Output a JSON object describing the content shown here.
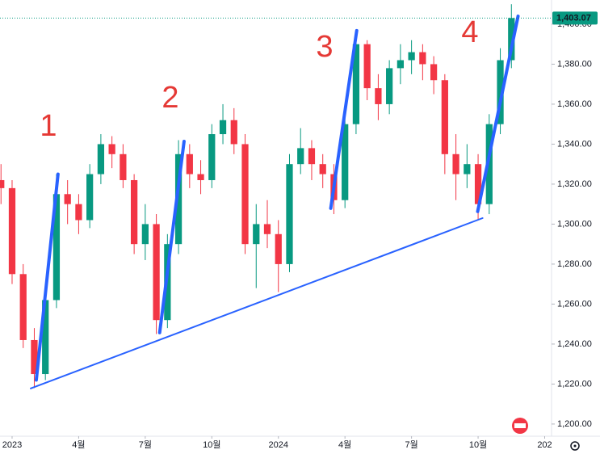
{
  "chart_data": {
    "type": "candlestick",
    "x": [
      -0.5,
      0,
      0.5,
      1,
      1.5,
      2,
      2.5,
      3,
      3.5,
      4,
      4.5,
      5,
      5.5,
      6,
      6.5,
      7,
      7.5,
      8,
      8.5,
      9,
      9.5,
      10,
      10.5,
      11,
      11.5,
      12,
      12.5,
      13,
      13.5,
      14,
      14.5,
      15,
      15.5,
      16,
      16.5,
      17,
      17.5,
      18,
      18.5,
      19,
      19.5,
      20,
      20.5,
      21,
      21.5,
      22,
      22.5
    ],
    "open": [
      1322,
      1318,
      1275,
      1242,
      1225,
      1262,
      1315,
      1310,
      1302,
      1325,
      1340,
      1335,
      1322,
      1290,
      1300,
      1252,
      1290,
      1335,
      1325,
      1322,
      1345,
      1352,
      1340,
      1290,
      1300,
      1295,
      1280,
      1330,
      1338,
      1330,
      1325,
      1312,
      1350,
      1390,
      1368,
      1360,
      1378,
      1382,
      1386,
      1380,
      1372,
      1335,
      1325,
      1330,
      1310,
      1350,
      1382
    ],
    "high": [
      1330,
      1322,
      1280,
      1248,
      1265,
      1325,
      1322,
      1315,
      1330,
      1345,
      1344,
      1340,
      1325,
      1310,
      1305,
      1295,
      1342,
      1340,
      1332,
      1350,
      1360,
      1358,
      1345,
      1310,
      1312,
      1302,
      1335,
      1348,
      1342,
      1335,
      1330,
      1355,
      1396,
      1392,
      1375,
      1382,
      1390,
      1392,
      1390,
      1384,
      1375,
      1345,
      1340,
      1335,
      1355,
      1388,
      1410
    ],
    "low": [
      1310,
      1270,
      1238,
      1218,
      1222,
      1258,
      1300,
      1295,
      1298,
      1320,
      1328,
      1318,
      1285,
      1282,
      1245,
      1248,
      1285,
      1318,
      1315,
      1318,
      1340,
      1335,
      1285,
      1268,
      1288,
      1266,
      1276,
      1325,
      1322,
      1318,
      1305,
      1308,
      1345,
      1362,
      1352,
      1355,
      1370,
      1375,
      1372,
      1365,
      1325,
      1312,
      1318,
      1302,
      1305,
      1345,
      1378
    ],
    "close": [
      1318,
      1275,
      1242,
      1225,
      1262,
      1315,
      1310,
      1302,
      1325,
      1340,
      1335,
      1322,
      1290,
      1300,
      1252,
      1290,
      1335,
      1325,
      1322,
      1345,
      1352,
      1340,
      1290,
      1300,
      1295,
      1280,
      1330,
      1338,
      1330,
      1325,
      1312,
      1350,
      1390,
      1368,
      1360,
      1378,
      1382,
      1386,
      1380,
      1372,
      1335,
      1325,
      1330,
      1310,
      1350,
      1382,
      1403.07
    ],
    "up_color": "#089981",
    "down_color": "#f23645",
    "xlim": [
      -0.545,
      24.2
    ],
    "xticks": [
      {
        "value": 0,
        "label": "2023"
      },
      {
        "value": 3,
        "label": "4월"
      },
      {
        "value": 6,
        "label": "7월"
      },
      {
        "value": 9,
        "label": "10월"
      },
      {
        "value": 12,
        "label": "2024"
      },
      {
        "value": 15,
        "label": "4월"
      },
      {
        "value": 18,
        "label": "7월"
      },
      {
        "value": 21,
        "label": "10월"
      },
      {
        "value": 24,
        "label": "202"
      }
    ],
    "ylim": [
      1193.9,
      1412.1
    ],
    "yticks": [
      {
        "value": 1200,
        "label": "1,200.00"
      },
      {
        "value": 1220,
        "label": "1,220.00"
      },
      {
        "value": 1240,
        "label": "1,240.00"
      },
      {
        "value": 1260,
        "label": "1,260.00"
      },
      {
        "value": 1280,
        "label": "1,280.00"
      },
      {
        "value": 1300,
        "label": "1,300.00"
      },
      {
        "value": 1320,
        "label": "1,320.00"
      },
      {
        "value": 1340,
        "label": "1,340.00"
      },
      {
        "value": 1360,
        "label": "1,360.00"
      },
      {
        "value": 1380,
        "label": "1,380.00"
      },
      {
        "value": 1400,
        "label": "1,400.00"
      }
    ],
    "last_price": {
      "value": 1403.07,
      "label": "1,403.07"
    },
    "trendlines": [
      {
        "x": [
          0.84,
          21.2
        ],
        "y": [
          1217.8,
          1303.0
        ],
        "width": 2
      },
      {
        "x": [
          1.09,
          2.07
        ],
        "y": [
          1222,
          1325
        ],
        "width": 4
      },
      {
        "x": [
          6.65,
          7.75
        ],
        "y": [
          1245.7,
          1341.4
        ],
        "width": 4
      },
      {
        "x": [
          14.36,
          15.53
        ],
        "y": [
          1307.9,
          1396.8
        ],
        "width": 4
      },
      {
        "x": [
          20.98,
          22.8
        ],
        "y": [
          1306.3,
          1404.0
        ],
        "width": 4
      }
    ],
    "trendline_color": "#2962ff",
    "annotations": [
      "1",
      "2",
      "3",
      "4"
    ]
  }
}
